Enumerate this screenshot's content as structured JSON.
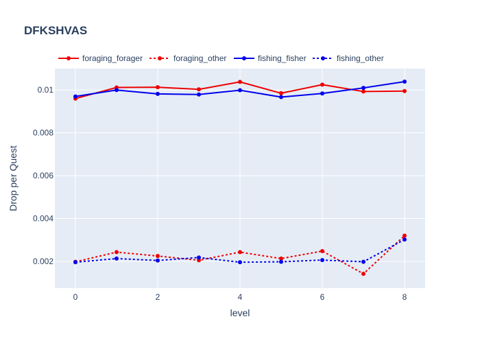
{
  "chart_data": {
    "type": "line",
    "title": "DFKSHVAS",
    "xlabel": "level",
    "ylabel": "Drop per Quest",
    "x": [
      0,
      1,
      2,
      3,
      4,
      5,
      6,
      7,
      8
    ],
    "xlim": [
      -0.5,
      8.5
    ],
    "ylim": [
      0.00075,
      0.011
    ],
    "x_ticks": [
      0,
      2,
      4,
      6,
      8
    ],
    "x_tick_labels": [
      "0",
      "2",
      "4",
      "6",
      "8"
    ],
    "y_ticks": [
      0.002,
      0.004,
      0.006,
      0.008,
      0.01
    ],
    "y_tick_labels": [
      "0.002",
      "0.004",
      "0.006",
      "0.008",
      "0.01"
    ],
    "grid": true,
    "legend_position": "top",
    "series": [
      {
        "name": "foraging_forager",
        "color": "#ee0000",
        "dash": "solid",
        "values": [
          0.0096,
          0.01012,
          0.01013,
          0.01003,
          0.01038,
          0.00985,
          0.01025,
          0.00993,
          0.00995
        ]
      },
      {
        "name": "foraging_other",
        "color": "#ee0000",
        "dash": "dot",
        "values": [
          0.00198,
          0.00243,
          0.00225,
          0.00205,
          0.00243,
          0.00213,
          0.00248,
          0.00142,
          0.0032
        ]
      },
      {
        "name": "fishing_fisher",
        "color": "#0000ee",
        "dash": "solid",
        "values": [
          0.0097,
          0.01,
          0.00982,
          0.00979,
          0.00999,
          0.00967,
          0.00984,
          0.0101,
          0.01039
        ]
      },
      {
        "name": "fishing_other",
        "color": "#0000ee",
        "dash": "dot",
        "values": [
          0.00196,
          0.00213,
          0.00204,
          0.00218,
          0.00196,
          0.00198,
          0.00206,
          0.00198,
          0.00302
        ]
      }
    ]
  }
}
